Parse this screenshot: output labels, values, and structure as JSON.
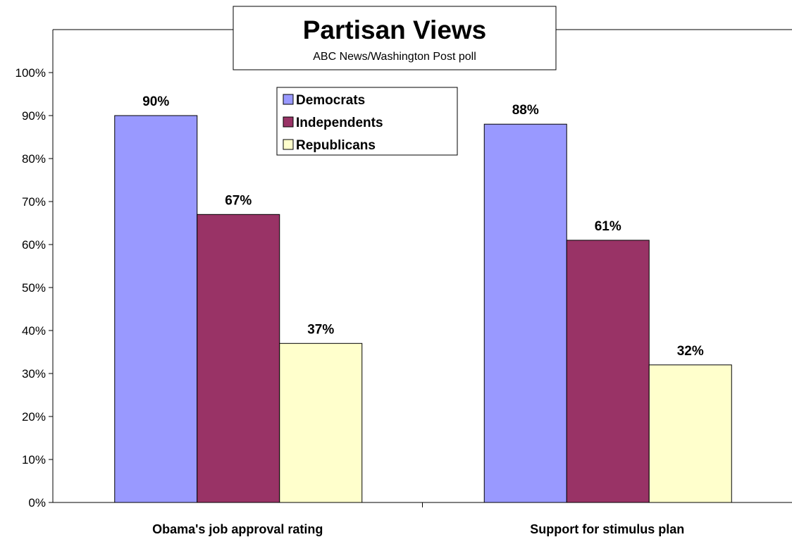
{
  "chart_data": {
    "type": "bar",
    "title": "Partisan Views",
    "subtitle": "ABC News/Washington Post poll",
    "categories": [
      "Obama's job approval rating",
      "Support for stimulus plan"
    ],
    "series": [
      {
        "name": "Democrats",
        "values": [
          90,
          88
        ],
        "color": "#9999ff"
      },
      {
        "name": "Independents",
        "values": [
          67,
          61
        ],
        "color": "#993366"
      },
      {
        "name": "Republicans",
        "values": [
          37,
          32
        ],
        "color": "#ffffcc"
      }
    ],
    "data_labels": [
      [
        "90%",
        "88%"
      ],
      [
        "67%",
        "61%"
      ],
      [
        "37%",
        "32%"
      ]
    ],
    "y_ticks": [
      "0%",
      "10%",
      "20%",
      "30%",
      "40%",
      "50%",
      "60%",
      "70%",
      "80%",
      "90%",
      "100%"
    ],
    "ylim": [
      0,
      100
    ],
    "xlabel": "",
    "ylabel": "",
    "grid": false,
    "legend_position": "top-center"
  }
}
